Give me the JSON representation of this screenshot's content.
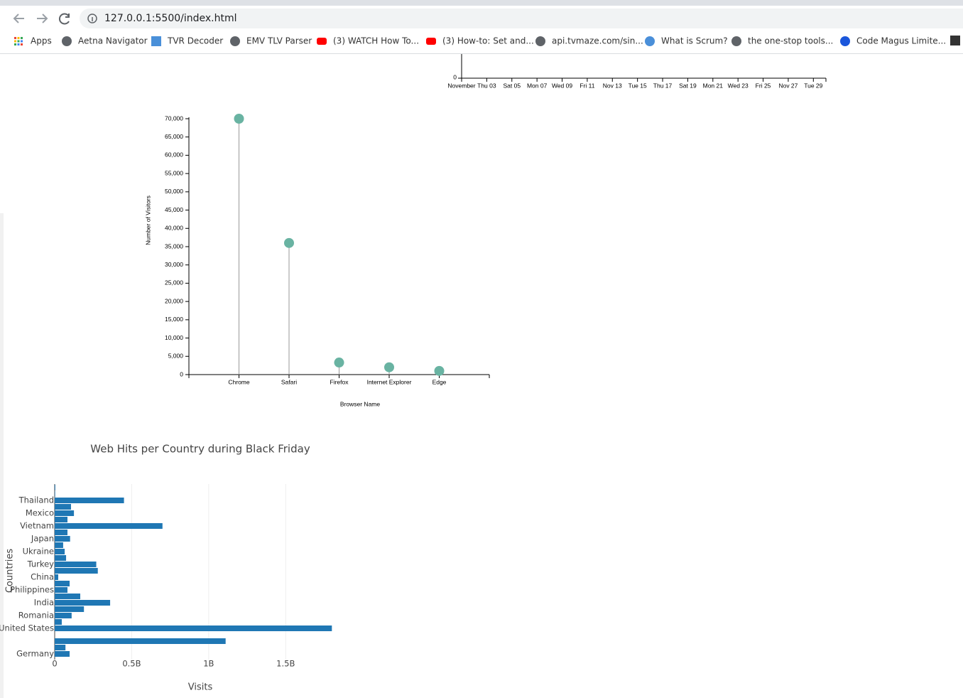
{
  "browser": {
    "url": "127.0.0.1:5500/index.html",
    "bookmarks": [
      "Apps",
      "Aetna Navigator",
      "TVR Decoder",
      "EMV TLV Parser",
      "(3) WATCH How To...",
      "(3) How-to: Set and...",
      "api.tvmaze.com/sin...",
      "What is Scrum?",
      "the one-stop tools...",
      "Code Magus Limite..."
    ]
  },
  "chart_data": [
    {
      "type": "axis",
      "xlim": [
        1,
        30
      ],
      "xticks": [
        {
          "value": 1,
          "label": "November"
        },
        {
          "value": 3,
          "label": "Thu 03"
        },
        {
          "value": 5,
          "label": "Sat 05"
        },
        {
          "value": 7,
          "label": "Mon 07"
        },
        {
          "value": 9,
          "label": "Wed 09"
        },
        {
          "value": 11,
          "label": "Fri 11"
        },
        {
          "value": 13,
          "label": "Nov 13"
        },
        {
          "value": 15,
          "label": "Tue 15"
        },
        {
          "value": 17,
          "label": "Thu 17"
        },
        {
          "value": 19,
          "label": "Sat 19"
        },
        {
          "value": 21,
          "label": "Mon 21"
        },
        {
          "value": 23,
          "label": "Wed 23"
        },
        {
          "value": 25,
          "label": "Fri 25"
        },
        {
          "value": 27,
          "label": "Nov 27"
        },
        {
          "value": 29,
          "label": "Tue 29"
        }
      ],
      "yticks": [
        0
      ]
    },
    {
      "type": "lollipop",
      "xlabel": "Browser Name",
      "ylabel": "Number of Visitors",
      "categories": [
        "Chrome",
        "Safari",
        "Firefox",
        "Internet Explorer",
        "Edge"
      ],
      "values": [
        70000,
        36000,
        3300,
        2000,
        1000
      ],
      "color": "#69b3a2",
      "ylim": [
        0,
        70000
      ],
      "yticks": [
        0,
        {
          "value": 5000,
          "label": "5,000"
        },
        {
          "value": 10000,
          "label": "10,000"
        },
        {
          "value": 15000,
          "label": "15,000"
        },
        {
          "value": 20000,
          "label": "20,000"
        },
        {
          "value": 25000,
          "label": "25,000"
        },
        {
          "value": 30000,
          "label": "30,000"
        },
        {
          "value": 35000,
          "label": "35,000"
        },
        {
          "value": 40000,
          "label": "40,000"
        },
        {
          "value": 45000,
          "label": "45,000"
        },
        {
          "value": 50000,
          "label": "50,000"
        },
        {
          "value": 55000,
          "label": "55,000"
        },
        {
          "value": 60000,
          "label": "60,000"
        },
        {
          "value": 65000,
          "label": "65,000"
        },
        {
          "value": 70000,
          "label": "70,000"
        }
      ]
    },
    {
      "type": "hbar",
      "title": "Web Hits per Country during Black Friday",
      "xlabel": "Visits",
      "ylabel": "Countries",
      "categories": [
        null,
        null,
        "Thailand",
        null,
        "Mexico",
        null,
        "Vietnam",
        null,
        "Japan",
        null,
        "Ukraine",
        null,
        "Turkey",
        null,
        "China",
        null,
        "Philippines",
        null,
        "India",
        null,
        "Romania",
        null,
        "United States",
        null,
        null,
        null,
        "Germany"
      ],
      "values": [
        4000000,
        3000000,
        450000000,
        106000000,
        125000000,
        83000000,
        700000000,
        83000000,
        100000000,
        55000000,
        65000000,
        74000000,
        270000000,
        280000000,
        23000000,
        97000000,
        83000000,
        166000000,
        360000000,
        190000000,
        110000000,
        46000000,
        1800000000,
        0,
        1110000000,
        70000000,
        97000000
      ],
      "color": "#1f77b4",
      "xlim": [
        0,
        1900000000
      ],
      "xticks": [
        0,
        {
          "value": 500000000,
          "label": "0.5B"
        },
        {
          "value": 1000000000,
          "label": "1B"
        },
        {
          "value": 1500000000,
          "label": "1.5B"
        }
      ],
      "grid": true
    }
  ]
}
